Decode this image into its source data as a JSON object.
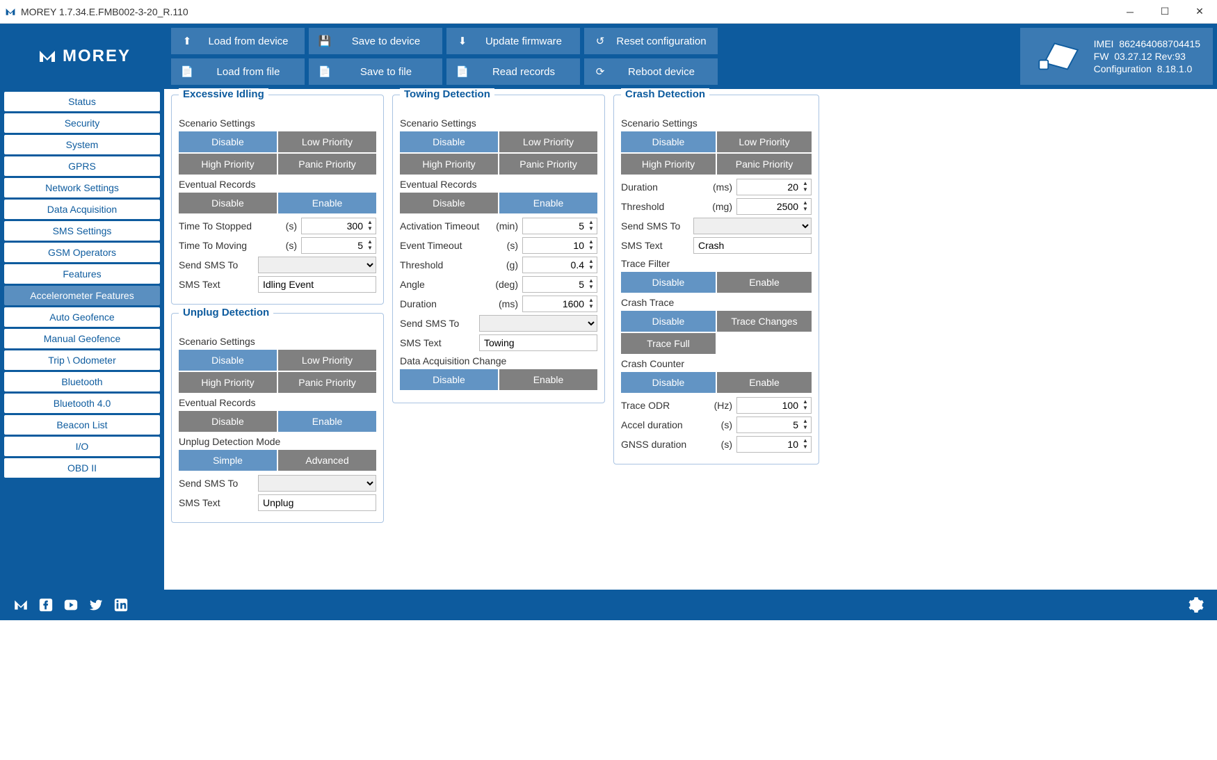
{
  "window": {
    "title": "MOREY 1.7.34.E.FMB002-3-20_R.110"
  },
  "brand": "MOREY",
  "actions": {
    "load_device": "Load from device",
    "save_device": "Save to device",
    "update_fw": "Update firmware",
    "reset_cfg": "Reset configuration",
    "load_file": "Load from file",
    "save_file": "Save to file",
    "read_rec": "Read records",
    "reboot": "Reboot device"
  },
  "device": {
    "imei_label": "IMEI",
    "imei": "862464068704415",
    "fw_label": "FW",
    "fw": "03.27.12 Rev:93",
    "cfg_label": "Configuration",
    "cfg": "8.18.1.0"
  },
  "nav": {
    "items": [
      "Status",
      "Security",
      "System",
      "GPRS",
      "Network Settings",
      "Data Acquisition",
      "SMS Settings",
      "GSM Operators",
      "Features",
      "Accelerometer Features",
      "Auto Geofence",
      "Manual Geofence",
      "Trip \\ Odometer",
      "Bluetooth",
      "Bluetooth 4.0",
      "Beacon List",
      "I/O",
      "OBD II"
    ],
    "active_index": 9
  },
  "labels": {
    "scenario_settings": "Scenario Settings",
    "eventual_records": "Eventual Records",
    "disable": "Disable",
    "enable": "Enable",
    "low_priority": "Low Priority",
    "high_priority": "High Priority",
    "panic_priority": "Panic Priority",
    "send_sms_to": "Send SMS To",
    "sms_text": "SMS Text",
    "simple": "Simple",
    "advanced": "Advanced",
    "trace_changes": "Trace Changes",
    "trace_full": "Trace Full"
  },
  "excessive_idling": {
    "title": "Excessive Idling",
    "scenario_selected": "Disable",
    "records_selected": "Enable",
    "time_to_stopped_label": "Time To Stopped",
    "time_to_stopped_unit": "(s)",
    "time_to_stopped": "300",
    "time_to_moving_label": "Time To Moving",
    "time_to_moving_unit": "(s)",
    "time_to_moving": "5",
    "sms_phone": "",
    "sms_text": "Idling Event"
  },
  "unplug": {
    "title": "Unplug Detection",
    "scenario_selected": "Disable",
    "records_selected": "Enable",
    "mode_label": "Unplug Detection Mode",
    "mode_selected": "Simple",
    "sms_phone": "",
    "sms_text": "Unplug"
  },
  "towing": {
    "title": "Towing Detection",
    "scenario_selected": "Disable",
    "records_selected": "Enable",
    "activation_timeout_label": "Activation Timeout",
    "activation_timeout_unit": "(min)",
    "activation_timeout": "5",
    "event_timeout_label": "Event Timeout",
    "event_timeout_unit": "(s)",
    "event_timeout": "10",
    "threshold_label": "Threshold",
    "threshold_unit": "(g)",
    "threshold": "0.4",
    "angle_label": "Angle",
    "angle_unit": "(deg)",
    "angle": "5",
    "duration_label": "Duration",
    "duration_unit": "(ms)",
    "duration": "1600",
    "sms_phone": "",
    "sms_text": "Towing",
    "daq_change_label": "Data Acquisition Change",
    "daq_selected": "Disable"
  },
  "crash": {
    "title": "Crash Detection",
    "scenario_selected": "Disable",
    "duration_label": "Duration",
    "duration_unit": "(ms)",
    "duration": "20",
    "threshold_label": "Threshold",
    "threshold_unit": "(mg)",
    "threshold": "2500",
    "sms_phone": "",
    "sms_text": "Crash",
    "trace_filter_label": "Trace Filter",
    "trace_filter_selected": "Disable",
    "crash_trace_label": "Crash Trace",
    "crash_trace_selected": "Disable",
    "crash_counter_label": "Crash Counter",
    "crash_counter_selected": "Disable",
    "trace_odr_label": "Trace ODR",
    "trace_odr_unit": "(Hz)",
    "trace_odr": "100",
    "accel_dur_label": "Accel duration",
    "accel_dur_unit": "(s)",
    "accel_dur": "5",
    "gnss_dur_label": "GNSS duration",
    "gnss_dur_unit": "(s)",
    "gnss_dur": "10"
  },
  "colors": {
    "primary": "#0d5b9e",
    "button_blue": "#3b7ab3",
    "selected": "#6294c4",
    "unselected": "#808080",
    "border": "#a9c3e2"
  }
}
